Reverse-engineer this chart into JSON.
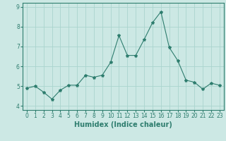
{
  "x": [
    0,
    1,
    2,
    3,
    4,
    5,
    6,
    7,
    8,
    9,
    10,
    11,
    12,
    13,
    14,
    15,
    16,
    17,
    18,
    19,
    20,
    21,
    22,
    23
  ],
  "y": [
    4.9,
    5.0,
    4.7,
    4.35,
    4.8,
    5.05,
    5.05,
    5.55,
    5.45,
    5.55,
    6.2,
    7.55,
    6.55,
    6.55,
    7.35,
    8.2,
    8.75,
    6.95,
    6.3,
    5.3,
    5.2,
    4.85,
    5.15,
    5.05
  ],
  "xlabel": "Humidex (Indice chaleur)",
  "ylim": [
    3.8,
    9.2
  ],
  "xlim": [
    -0.5,
    23.5
  ],
  "line_color": "#2e7d6e",
  "marker": "*",
  "marker_size": 3,
  "bg_color": "#cce8e4",
  "grid_color": "#aad4ce",
  "axes_color": "#2e7d6e",
  "tick_label_color": "#2e7d6e",
  "xlabel_color": "#2e7d6e",
  "yticks": [
    4,
    5,
    6,
    7,
    8,
    9
  ],
  "xticks": [
    0,
    1,
    2,
    3,
    4,
    5,
    6,
    7,
    8,
    9,
    10,
    11,
    12,
    13,
    14,
    15,
    16,
    17,
    18,
    19,
    20,
    21,
    22,
    23
  ],
  "tick_fontsize": 5.5,
  "xlabel_fontsize": 7.0
}
